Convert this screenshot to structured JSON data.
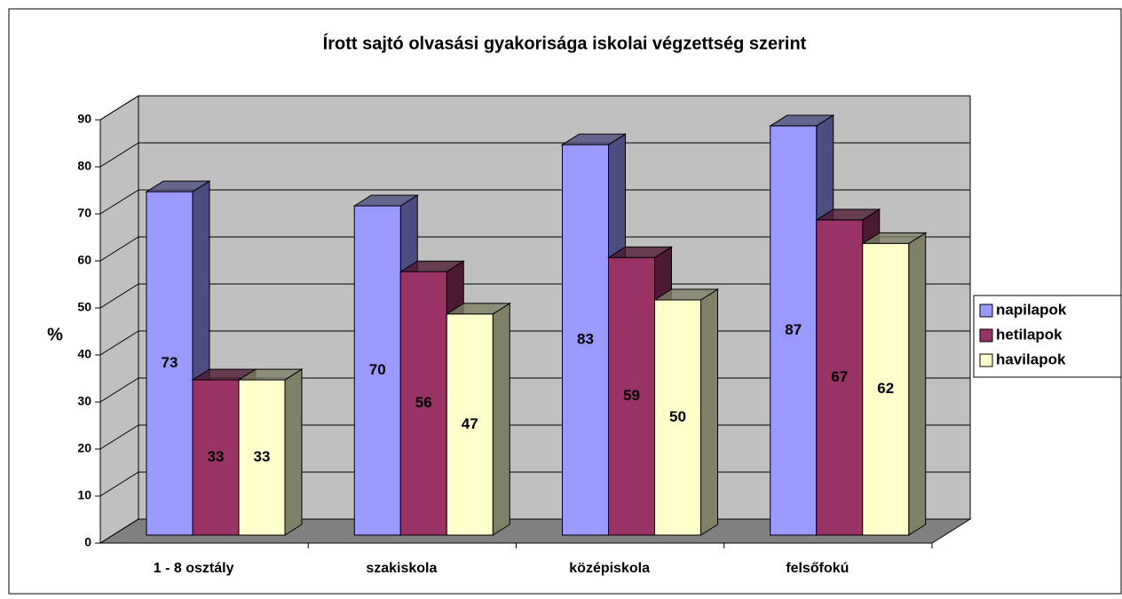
{
  "chart_data": {
    "type": "bar",
    "title": "Írott sajtó olvasási gyakorisága iskolai végzettség szerint",
    "y_label": "%",
    "categories": [
      "1 - 8 osztály",
      "szakiskola",
      "középiskola",
      "felsőfokú"
    ],
    "series": [
      {
        "name": "napilapok",
        "color": "#9999ff",
        "side": "#4d4d80",
        "values": [
          73,
          70,
          83,
          87
        ]
      },
      {
        "name": "hetilapok",
        "color": "#993366",
        "side": "#4d1a33",
        "values": [
          33,
          56,
          59,
          67
        ]
      },
      {
        "name": "havilapok",
        "color": "#ffffcc",
        "side": "#808066",
        "values": [
          33,
          47,
          50,
          62
        ]
      }
    ],
    "ylim": [
      0,
      90
    ],
    "yticks": [
      0,
      10,
      20,
      30,
      40,
      50,
      60,
      70,
      80,
      90
    ],
    "grid": true,
    "legend": "right"
  }
}
